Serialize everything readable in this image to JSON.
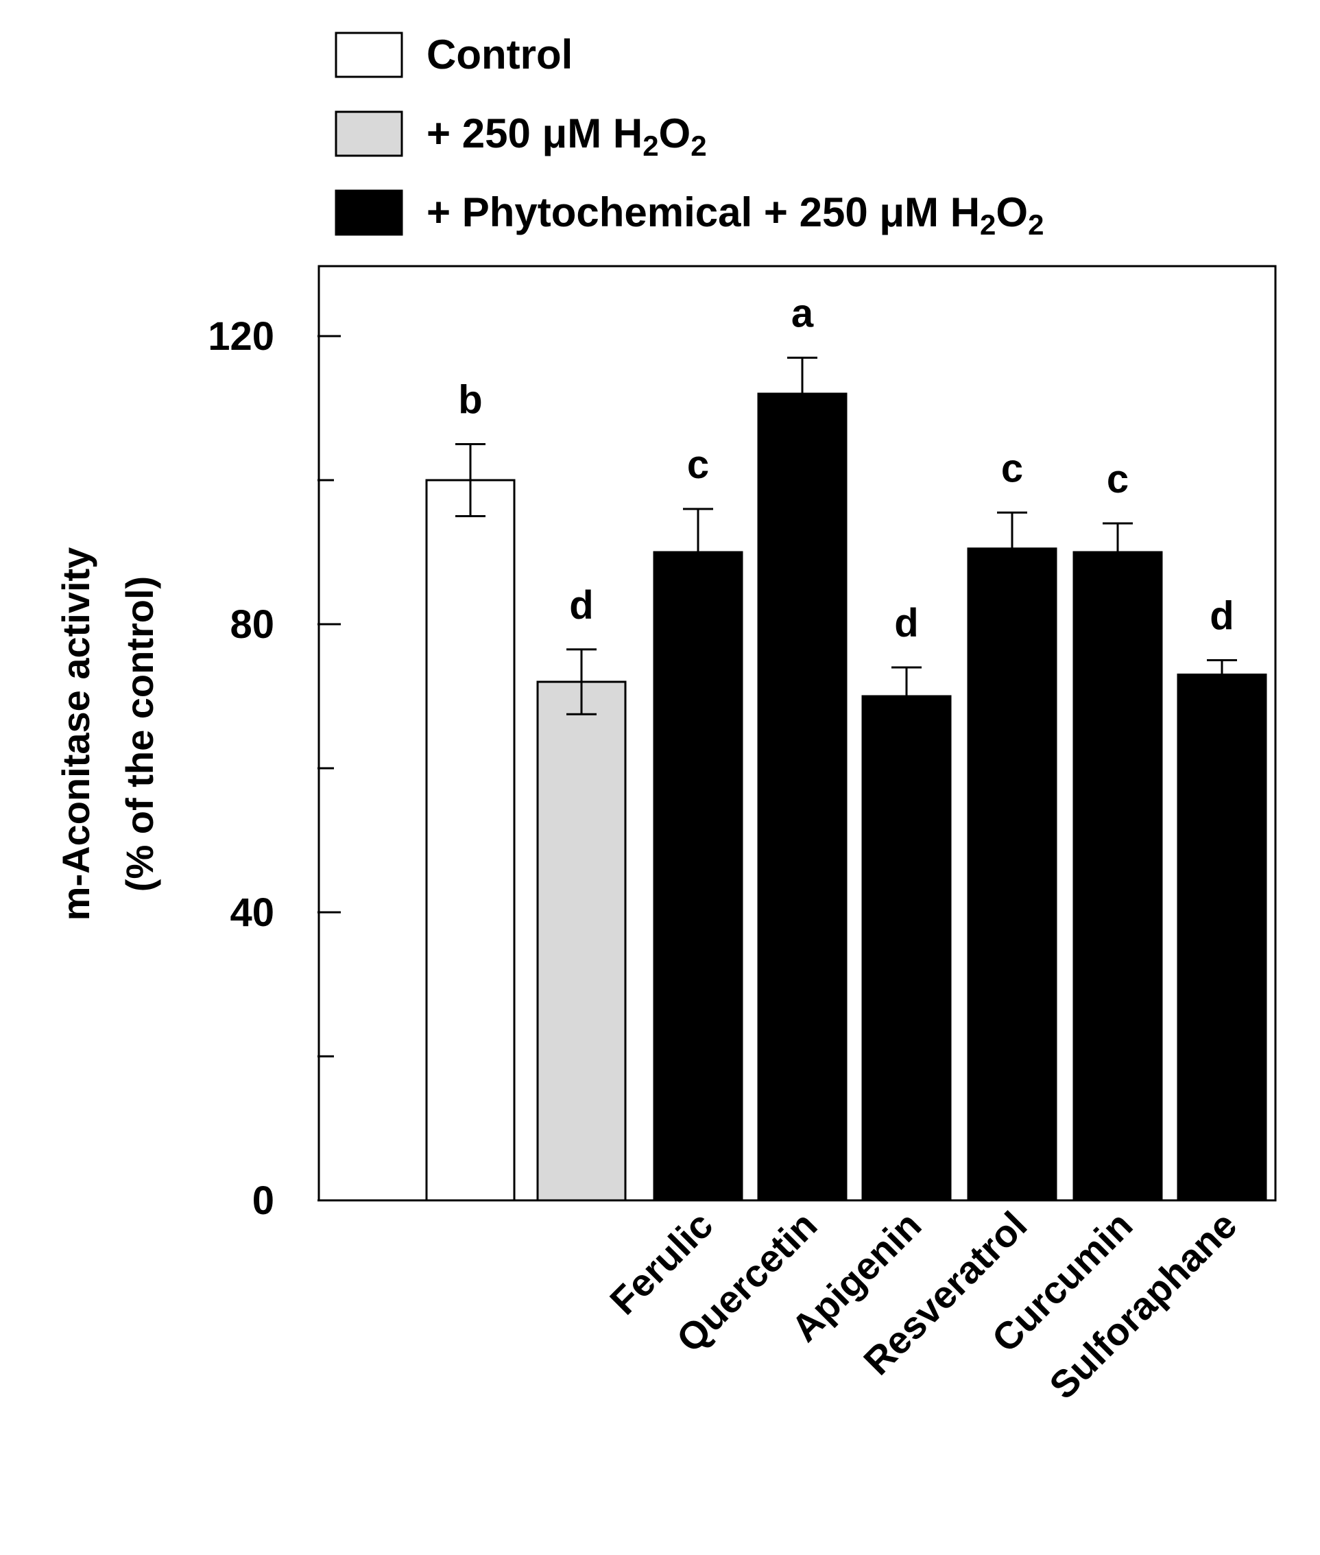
{
  "chart_data": {
    "type": "bar",
    "ylabel_line1": "m-Aconitase activity",
    "ylabel_line2": "(% of the control)",
    "ylim": [
      0,
      130
    ],
    "yticks_major": [
      0,
      40,
      80,
      120
    ],
    "yticks_minor": [
      20,
      60,
      100
    ],
    "legend": [
      {
        "label_parts": [
          {
            "t": "Control"
          }
        ],
        "fill": "#ffffff"
      },
      {
        "label_parts": [
          {
            "t": "+ 250 μM H"
          },
          {
            "t": "2",
            "sub": true
          },
          {
            "t": "O"
          },
          {
            "t": "2",
            "sub": true
          }
        ],
        "fill": "#d9d9d9"
      },
      {
        "label_parts": [
          {
            "t": "+ Phytochemical + 250 μM H"
          },
          {
            "t": "2",
            "sub": true
          },
          {
            "t": "O"
          },
          {
            "t": "2",
            "sub": true
          }
        ],
        "fill": "#000000"
      }
    ],
    "bars": [
      {
        "category": "",
        "value": 100,
        "error": 5,
        "letter": "b",
        "group": 0
      },
      {
        "category": "",
        "value": 72,
        "error": 4.5,
        "letter": "d",
        "group": 1
      },
      {
        "category": "Ferulic",
        "value": 90,
        "error": 6,
        "letter": "c",
        "group": 2
      },
      {
        "category": "Quercetin",
        "value": 112,
        "error": 5,
        "letter": "a",
        "group": 2
      },
      {
        "category": "Apigenin",
        "value": 70,
        "error": 4,
        "letter": "d",
        "group": 2
      },
      {
        "category": "Resveratrol",
        "value": 90.5,
        "error": 5,
        "letter": "c",
        "group": 2
      },
      {
        "category": "Curcumin",
        "value": 90,
        "error": 4,
        "letter": "c",
        "group": 2
      },
      {
        "category": "Sulforaphane",
        "value": 73,
        "error": 2,
        "letter": "d",
        "group": 2
      }
    ]
  }
}
